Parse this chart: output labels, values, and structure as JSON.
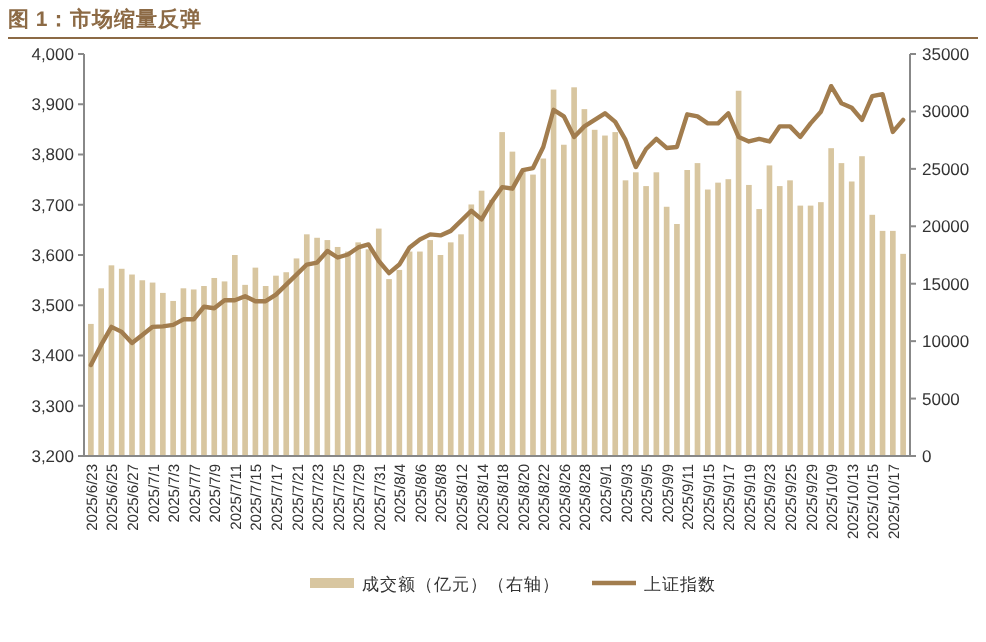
{
  "chart_data": {
    "type": "bar",
    "title": "图 1：市场缩量反弹",
    "categories": [
      "2025/6/23",
      null,
      "2025/6/25",
      null,
      "2025/6/27",
      null,
      "2025/7/1",
      null,
      "2025/7/3",
      null,
      "2025/7/7",
      null,
      "2025/7/9",
      null,
      "2025/7/11",
      null,
      "2025/7/15",
      null,
      "2025/7/17",
      null,
      "2025/7/21",
      null,
      "2025/7/23",
      null,
      "2025/7/25",
      null,
      "2025/7/29",
      null,
      "2025/7/31",
      null,
      "2025/8/4",
      null,
      "2025/8/6",
      null,
      "2025/8/8",
      null,
      "2025/8/12",
      null,
      "2025/8/14",
      null,
      "2025/8/18",
      null,
      "2025/8/20",
      null,
      "2025/8/22",
      null,
      "2025/8/26",
      null,
      "2025/8/28",
      null,
      "2025/9/1",
      null,
      "2025/9/3",
      null,
      "2025/9/5",
      null,
      "2025/9/9",
      null,
      "2025/9/11",
      null,
      "2025/9/15",
      null,
      "2025/9/17",
      null,
      "2025/9/19",
      null,
      "2025/9/23",
      null,
      "2025/9/25",
      null,
      "2025/9/29",
      null,
      "2025/10/9",
      null,
      "2025/10/13",
      null,
      "2025/10/15",
      null,
      "2025/10/17",
      null
    ],
    "series": [
      {
        "name": "成交额（亿元）（右轴）",
        "axis": "y2",
        "color": "#d8c6a0",
        "values": [
          11500,
          14600,
          16600,
          16300,
          15800,
          15300,
          15100,
          14200,
          13500,
          14600,
          14500,
          14800,
          15500,
          15200,
          17500,
          14900,
          16400,
          14800,
          15700,
          16000,
          17200,
          19300,
          19000,
          18800,
          18200,
          17800,
          18600,
          18000,
          19800,
          15400,
          16200,
          17800,
          17800,
          18800,
          17500,
          18600,
          19300,
          21900,
          23100,
          22300,
          28200,
          26500,
          24900,
          24500,
          25900,
          31900,
          27100,
          32100,
          30200,
          28400,
          27900,
          28200,
          24000,
          24700,
          23500,
          24700,
          21700,
          20200,
          24900,
          25500,
          23200,
          23800,
          24100,
          31800,
          23600,
          21500,
          25300,
          23500,
          24000,
          21800,
          21800,
          22100,
          26800,
          25500,
          23900,
          26100,
          21000,
          19600,
          19600,
          17600
        ]
      },
      {
        "name": "上证指数",
        "type": "line",
        "color": "#a27d4e",
        "values": [
          3381,
          3421,
          3457,
          3447,
          3425,
          3441,
          3457,
          3458,
          3461,
          3472,
          3472,
          3497,
          3494,
          3510,
          3510,
          3518,
          3508,
          3508,
          3521,
          3541,
          3561,
          3581,
          3585,
          3608,
          3595,
          3601,
          3615,
          3621,
          3588,
          3564,
          3581,
          3615,
          3631,
          3641,
          3639,
          3648,
          3668,
          3688,
          3671,
          3706,
          3735,
          3732,
          3769,
          3773,
          3815,
          3889,
          3876,
          3835,
          3856,
          3869,
          3882,
          3865,
          3829,
          3775,
          3811,
          3831,
          3813,
          3815,
          3880,
          3876,
          3862,
          3862,
          3882,
          3835,
          3826,
          3831,
          3826,
          3856,
          3856,
          3835,
          3862,
          3885,
          3936,
          3902,
          3893,
          3869,
          3916,
          3920,
          3845,
          3869
        ]
      }
    ],
    "ylim": [
      3200,
      4000
    ],
    "yticks": [
      {
        "value": 3200,
        "label": "3,200"
      },
      {
        "value": 3300,
        "label": "3,300"
      },
      {
        "value": 3400,
        "label": "3,400"
      },
      {
        "value": 3500,
        "label": "3,500"
      },
      {
        "value": 3600,
        "label": "3,600"
      },
      {
        "value": 3700,
        "label": "3,700"
      },
      {
        "value": 3800,
        "label": "3,800"
      },
      {
        "value": 3900,
        "label": "3,900"
      },
      {
        "value": 4000,
        "label": "4,000"
      }
    ],
    "y2lim": [
      0,
      35000
    ],
    "y2ticks": [
      0,
      5000,
      10000,
      15000,
      20000,
      25000,
      30000,
      35000
    ],
    "grid": false,
    "legend": "bottom"
  }
}
